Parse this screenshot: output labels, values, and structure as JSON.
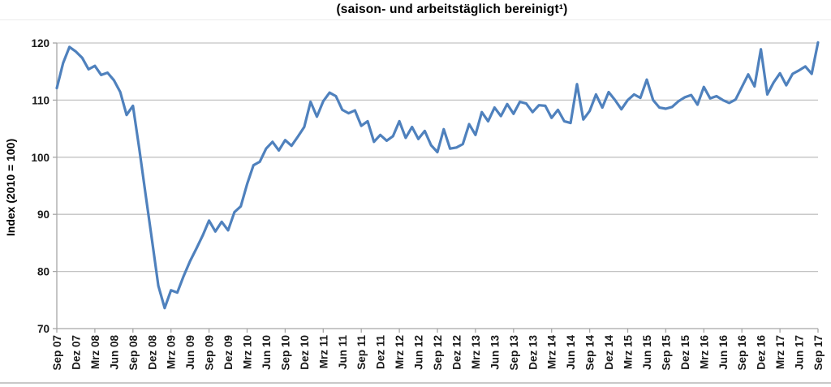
{
  "chart_data": {
    "type": "line",
    "title": "(saison- und arbeitstäglich bereinigt¹)",
    "ylabel": "Index (2010 = 100)",
    "xlabel": "",
    "ylim": [
      70,
      120
    ],
    "yticks": [
      70,
      80,
      90,
      100,
      110,
      120
    ],
    "grid": "horizontal",
    "legend": "none",
    "x_unit": "monthly",
    "x_range": [
      "Sep 07",
      "Sep 17"
    ],
    "x_tick_labels": [
      "Sep 07",
      "Dez 07",
      "Mrz 08",
      "Jun 08",
      "Sep 08",
      "Dez 08",
      "Mrz 09",
      "Jun 09",
      "Sep 09",
      "Dez 09",
      "Mrz 10",
      "Jun 10",
      "Sep 10",
      "Dez 10",
      "Mrz 11",
      "Jun 11",
      "Sep 11",
      "Dez 11",
      "Mrz 12",
      "Jun 12",
      "Sep 12",
      "Dez 12",
      "Mrz 13",
      "Jun 13",
      "Sep 13",
      "Dez 13",
      "Mrz 14",
      "Jun 14",
      "Sep 14",
      "Dez 14",
      "Mrz 15",
      "Jun 15",
      "Sep 15",
      "Dez 15",
      "Mrz 16",
      "Jun 16",
      "Sep 16",
      "Dez 16",
      "Mrz 17",
      "Jun 17",
      "Sep 17"
    ],
    "x_label_every_n_points": 3,
    "series": [
      {
        "name": "Index (2010 = 100)",
        "color": "#4F81BD",
        "values": [
          112.1,
          116.5,
          119.3,
          118.5,
          117.4,
          115.4,
          116.0,
          114.4,
          114.8,
          113.5,
          111.4,
          107.4,
          109.0,
          101.5,
          93.5,
          85.5,
          77.5,
          73.6,
          76.7,
          76.3,
          79.2,
          81.8,
          84.0,
          86.3,
          88.9,
          87.0,
          88.7,
          87.2,
          90.4,
          91.4,
          95.3,
          98.6,
          99.2,
          101.5,
          102.7,
          101.2,
          103.0,
          102.0,
          103.6,
          105.3,
          109.7,
          107.1,
          109.8,
          111.3,
          110.7,
          108.3,
          107.7,
          108.2,
          105.5,
          106.3,
          102.7,
          103.9,
          102.9,
          103.7,
          106.3,
          103.4,
          105.3,
          103.2,
          104.6,
          102.1,
          100.9,
          104.9,
          101.5,
          101.7,
          102.3,
          105.8,
          103.9,
          107.9,
          106.3,
          108.7,
          107.2,
          109.3,
          107.6,
          109.7,
          109.4,
          107.9,
          109.1,
          109.0,
          106.9,
          108.3,
          106.3,
          106.0,
          112.8,
          106.6,
          108.1,
          111.0,
          108.7,
          111.4,
          110.0,
          108.4,
          110.0,
          111.0,
          110.4,
          113.6,
          110.0,
          108.7,
          108.5,
          108.8,
          109.8,
          110.5,
          110.9,
          109.2,
          112.3,
          110.3,
          110.7,
          110.0,
          109.5,
          110.1,
          112.3,
          114.5,
          112.4,
          118.9,
          111.0,
          113.1,
          114.7,
          112.6,
          114.6,
          115.2,
          115.9,
          114.6,
          120.1
        ]
      }
    ],
    "colors": {
      "line": "#4F81BD",
      "grid": "#c3c3c3",
      "axis": "#a6a6a6",
      "text": "#1a1a1a",
      "divider": "#c9c9c9"
    }
  }
}
